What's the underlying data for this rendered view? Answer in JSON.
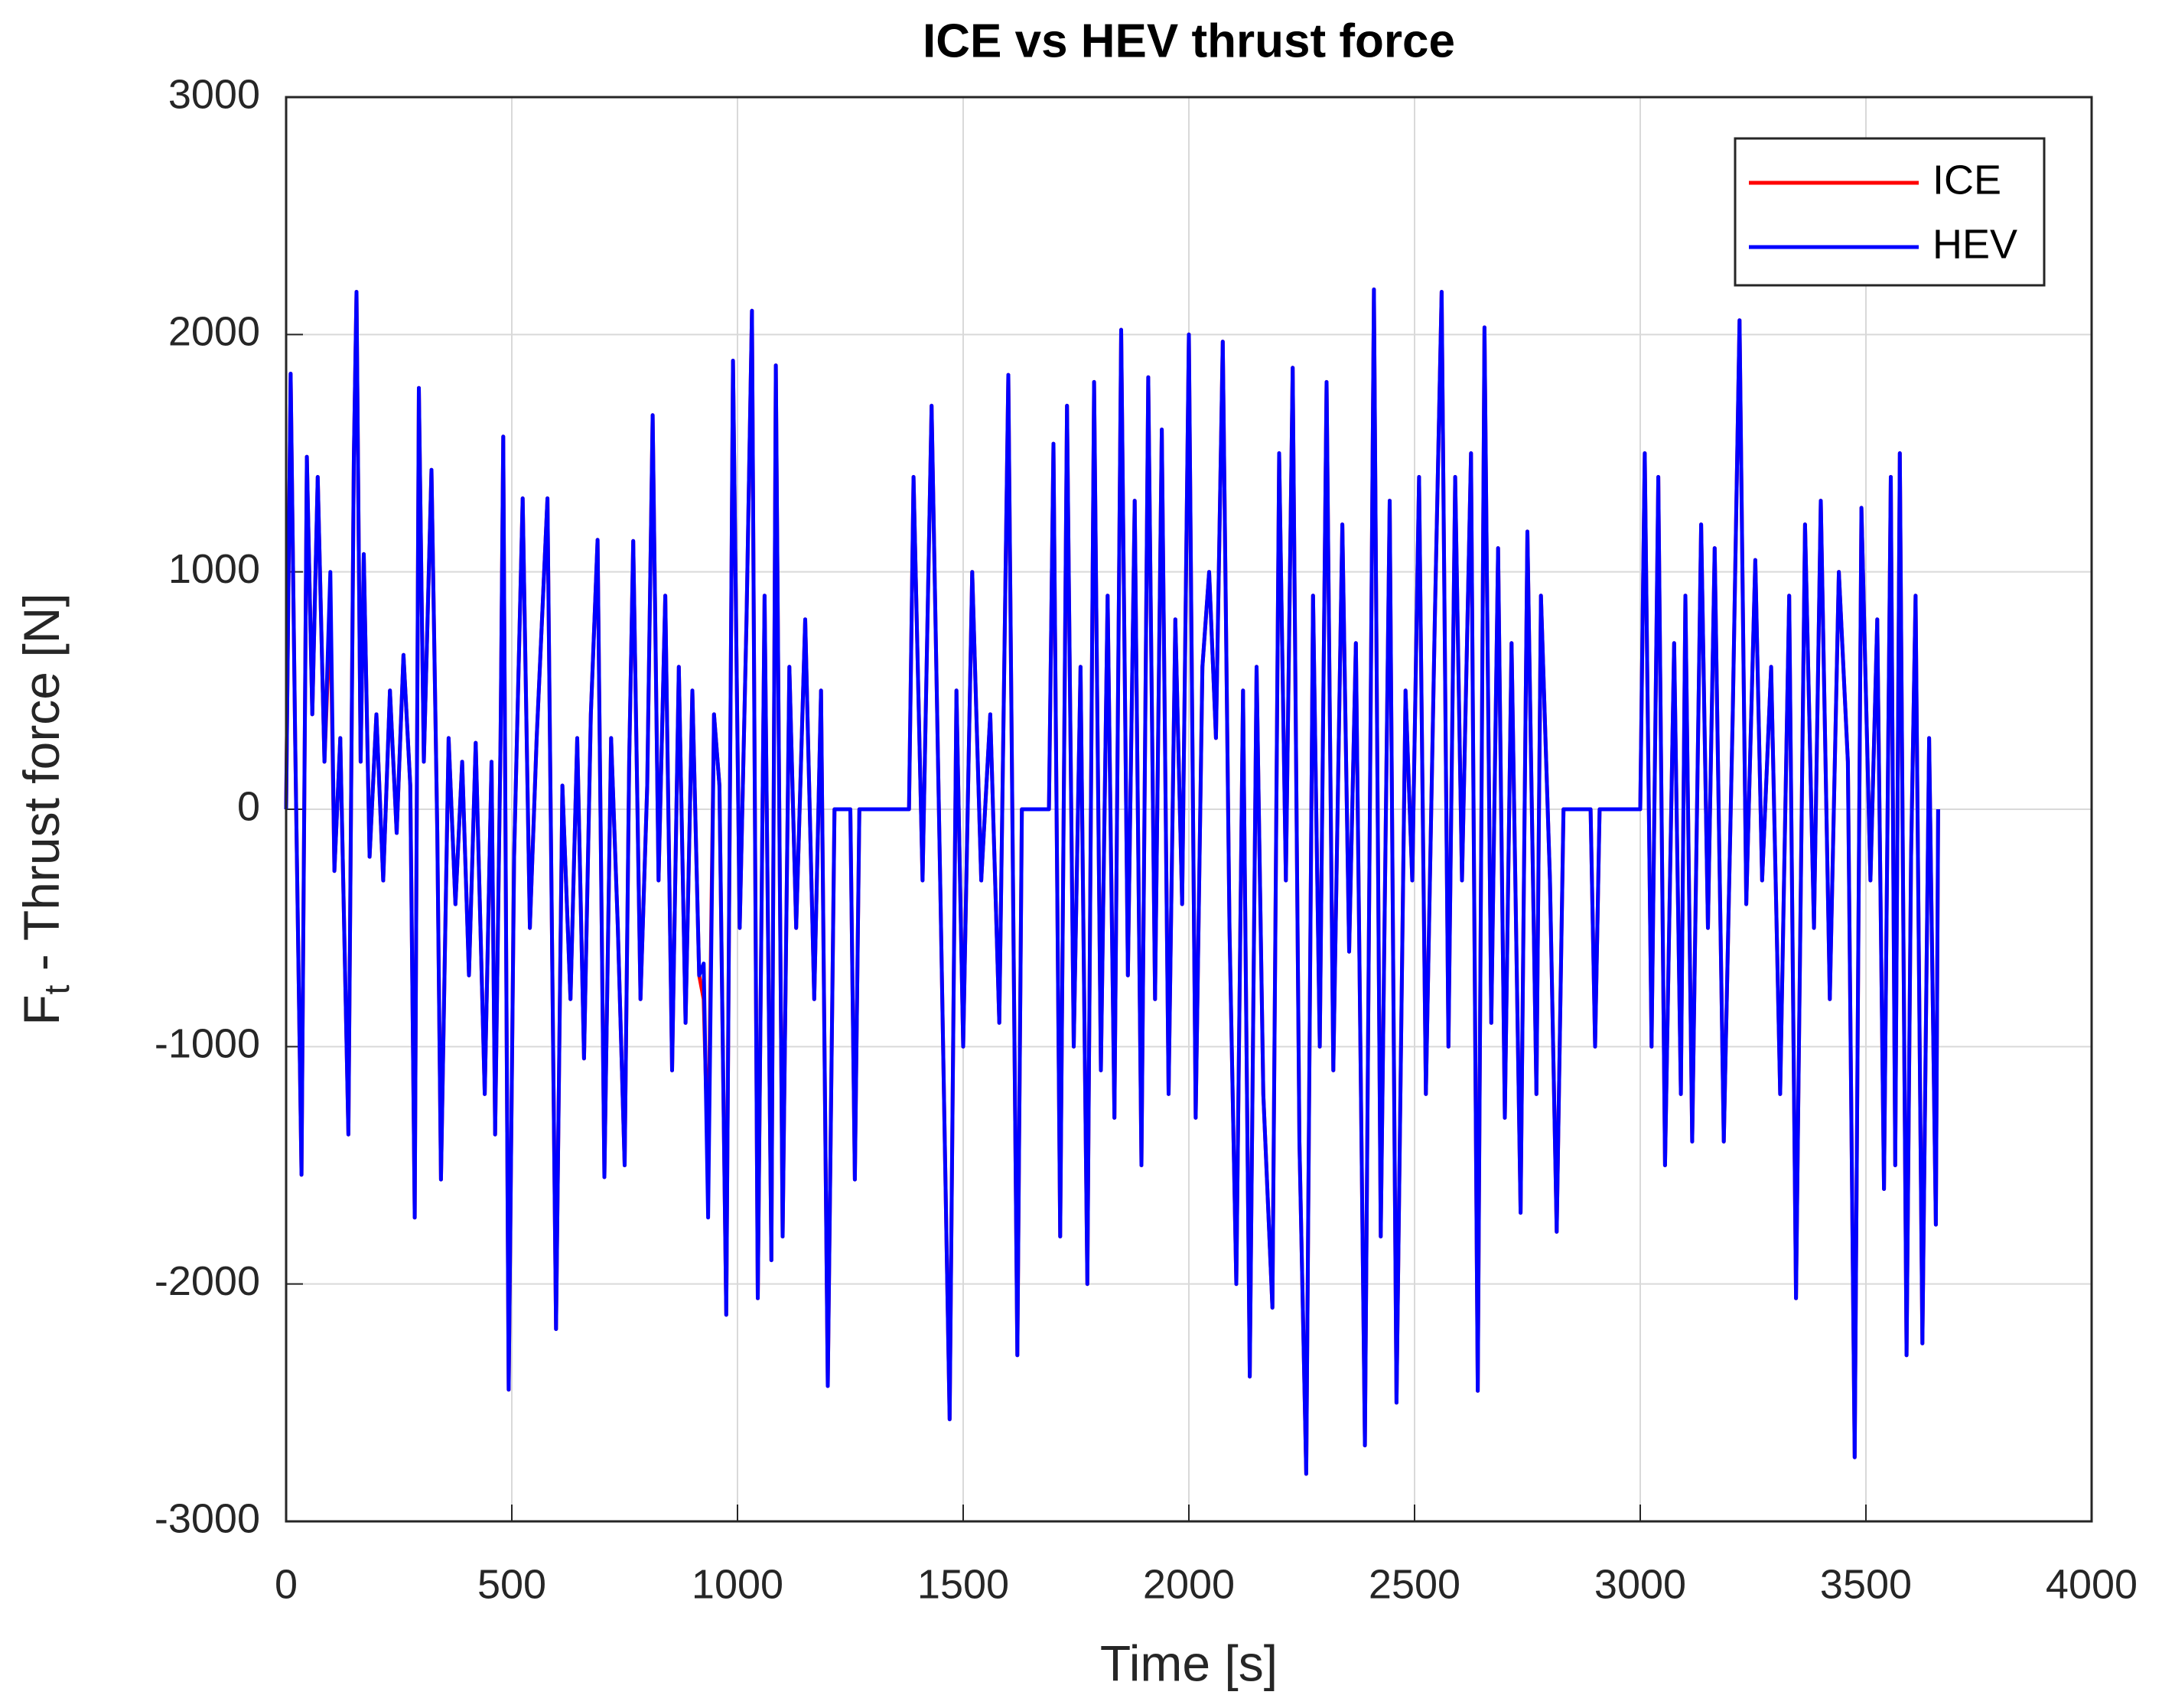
{
  "chart_data": {
    "type": "line",
    "title": "ICE vs HEV thrust force",
    "xlabel": "Time [s]",
    "ylabel": {
      "main": "F",
      "sub": "t",
      "rest": " - Thrust force [N]"
    },
    "xlim": [
      0,
      4000
    ],
    "xticks": [
      0,
      500,
      1000,
      1500,
      2000,
      2500,
      3000,
      3500,
      4000
    ],
    "ylim": [
      -3000,
      3000
    ],
    "yticks": [
      -3000,
      -2000,
      -1000,
      0,
      1000,
      2000,
      3000
    ],
    "grid": true,
    "legend": "top-right",
    "x": [
      0,
      10,
      20,
      34,
      46,
      58,
      70,
      85,
      98,
      107,
      120,
      138,
      150,
      156,
      165,
      172,
      185,
      200,
      215,
      230,
      245,
      260,
      275,
      285,
      294,
      305,
      322,
      335,
      343,
      360,
      375,
      390,
      405,
      420,
      440,
      455,
      463,
      475,
      481,
      493,
      505,
      524,
      540,
      555,
      579,
      598,
      612,
      630,
      645,
      660,
      675,
      690,
      705,
      720,
      735,
      750,
      760,
      769,
      785,
      800,
      812,
      825,
      840,
      855,
      870,
      885,
      900,
      915,
      925,
      935,
      948,
      960,
      975,
      990,
      1005,
      1020,
      1032,
      1045,
      1060,
      1075,
      1085,
      1100,
      1115,
      1130,
      1150,
      1170,
      1185,
      1200,
      1215,
      1250,
      1260,
      1270,
      1380,
      1390,
      1410,
      1430,
      1450,
      1470,
      1485,
      1500,
      1520,
      1540,
      1560,
      1580,
      1600,
      1620,
      1630,
      1690,
      1700,
      1715,
      1730,
      1745,
      1760,
      1775,
      1790,
      1805,
      1820,
      1835,
      1850,
      1865,
      1880,
      1895,
      1910,
      1925,
      1940,
      1955,
      1970,
      1985,
      2000,
      2015,
      2030,
      2045,
      2060,
      2075,
      2090,
      2105,
      2120,
      2135,
      2150,
      2165,
      2185,
      2200,
      2215,
      2230,
      2245,
      2260,
      2275,
      2290,
      2305,
      2320,
      2340,
      2355,
      2370,
      2390,
      2410,
      2425,
      2445,
      2460,
      2480,
      2495,
      2510,
      2525,
      2545,
      2560,
      2575,
      2590,
      2605,
      2625,
      2640,
      2655,
      2670,
      2685,
      2700,
      2715,
      2735,
      2750,
      2770,
      2780,
      2800,
      2815,
      2830,
      2890,
      2900,
      2910,
      3000,
      3010,
      3025,
      3040,
      3055,
      3075,
      3090,
      3100,
      3115,
      3135,
      3150,
      3165,
      3185,
      3205,
      3220,
      3235,
      3255,
      3270,
      3290,
      3310,
      3330,
      3345,
      3365,
      3385,
      3400,
      3420,
      3440,
      3460,
      3475,
      3490,
      3510,
      3525,
      3540,
      3555,
      3565,
      3575,
      3590,
      3600,
      3610,
      3625,
      3640,
      3655,
      3660
    ],
    "series": [
      {
        "name": "ICE",
        "color": "#ff0000",
        "values": [
          0,
          1835,
          300,
          -1540,
          1485,
          400,
          1400,
          200,
          850,
          -260,
          300,
          -1370,
          1480,
          2180,
          200,
          1075,
          -200,
          400,
          -300,
          500,
          -100,
          650,
          100,
          -1720,
          1775,
          200,
          1430,
          -100,
          -1560,
          300,
          -400,
          200,
          -700,
          280,
          -1200,
          200,
          -1370,
          300,
          1570,
          -2445,
          -200,
          1310,
          -500,
          300,
          1310,
          -2190,
          100,
          -800,
          300,
          -1050,
          400,
          1135,
          -1550,
          300,
          -500,
          -1500,
          200,
          1130,
          -800,
          100,
          1660,
          -300,
          900,
          -1100,
          600,
          -900,
          500,
          -700,
          -800,
          -1500,
          400,
          100,
          -2130,
          1890,
          -500,
          800,
          2100,
          -2060,
          900,
          -1900,
          1870,
          -1800,
          600,
          -500,
          800,
          -800,
          500,
          -2430,
          0,
          0,
          -1560,
          0,
          0,
          1400,
          -300,
          1700,
          -400,
          -2570,
          500,
          -1000,
          1000,
          -300,
          400,
          -900,
          1830,
          -2300,
          0,
          0,
          1540,
          -1800,
          1700,
          -1000,
          600,
          -2000,
          1800,
          -1100,
          900,
          -1300,
          2020,
          -700,
          1300,
          -1500,
          1820,
          -800,
          1600,
          -1200,
          800,
          -400,
          2000,
          -1300,
          600,
          1000,
          300,
          1970,
          -500,
          -2000,
          500,
          -2390,
          600,
          -1200,
          -2100,
          1500,
          -300,
          1860,
          -1400,
          -2800,
          900,
          -1000,
          1800,
          -1100,
          1200,
          -600,
          700,
          -2680,
          2190,
          -1800,
          1300,
          -2500,
          500,
          -300,
          1400,
          -1200,
          800,
          2180,
          -1000,
          1400,
          -300,
          1500,
          -2450,
          2030,
          -900,
          1100,
          -1300,
          700,
          -1700,
          1170,
          -1200,
          900,
          -300,
          -1780,
          0,
          0,
          -1000,
          0,
          0,
          1500,
          -1000,
          1400,
          -1500,
          700,
          -1200,
          900,
          -1400,
          1200,
          -500,
          1100,
          -1400,
          400,
          2060,
          -400,
          1050,
          -300,
          600,
          -1200,
          900,
          -2060,
          1200,
          -500,
          1300,
          -800,
          1000,
          200,
          -2730,
          1270,
          -300,
          800,
          -1600,
          1400,
          -1500,
          1500,
          -2300,
          -200,
          900,
          -2250,
          300,
          -1750,
          0
        ]
      },
      {
        "name": "HEV",
        "color": "#0000ff",
        "values": [
          0,
          1835,
          300,
          -1540,
          1485,
          400,
          1400,
          200,
          1000,
          -260,
          300,
          -1370,
          1480,
          2180,
          200,
          1075,
          -200,
          400,
          -300,
          500,
          -100,
          650,
          100,
          -1720,
          1775,
          200,
          1430,
          -100,
          -1560,
          300,
          -400,
          200,
          -700,
          280,
          -1200,
          200,
          -1370,
          300,
          1570,
          -2445,
          -200,
          1310,
          -500,
          300,
          1310,
          -2190,
          100,
          -800,
          300,
          -1050,
          400,
          1135,
          -1550,
          300,
          -500,
          -1500,
          200,
          1130,
          -800,
          100,
          1660,
          -300,
          900,
          -1100,
          600,
          -900,
          500,
          -700,
          -650,
          -1720,
          400,
          100,
          -2130,
          1890,
          -500,
          800,
          2100,
          -2060,
          900,
          -1900,
          1870,
          -1800,
          600,
          -500,
          800,
          -800,
          500,
          -2430,
          0,
          0,
          -1560,
          0,
          0,
          1400,
          -300,
          1700,
          -400,
          -2570,
          500,
          -1000,
          1000,
          -300,
          400,
          -900,
          1830,
          -2300,
          0,
          0,
          1540,
          -1800,
          1700,
          -1000,
          600,
          -2000,
          1800,
          -1100,
          900,
          -1300,
          2020,
          -700,
          1300,
          -1500,
          1820,
          -800,
          1600,
          -1200,
          800,
          -400,
          2000,
          -1300,
          600,
          1000,
          300,
          1970,
          -500,
          -2000,
          500,
          -2390,
          600,
          -1200,
          -2100,
          1500,
          -300,
          1860,
          -1400,
          -2800,
          900,
          -1000,
          1800,
          -1100,
          1200,
          -600,
          700,
          -2680,
          2190,
          -1800,
          1300,
          -2500,
          500,
          -300,
          1400,
          -1200,
          800,
          2180,
          -1000,
          1400,
          -300,
          1500,
          -2450,
          2030,
          -900,
          1100,
          -1300,
          700,
          -1700,
          1170,
          -1200,
          900,
          -300,
          -1780,
          0,
          0,
          -1000,
          0,
          0,
          1500,
          -1000,
          1400,
          -1500,
          700,
          -1200,
          900,
          -1400,
          1200,
          -500,
          1100,
          -1400,
          400,
          2060,
          -400,
          1050,
          -300,
          600,
          -1200,
          900,
          -2060,
          1200,
          -500,
          1300,
          -800,
          1000,
          200,
          -2730,
          1270,
          -300,
          800,
          -1600,
          1400,
          -1500,
          1500,
          -2300,
          -200,
          900,
          -2250,
          300,
          -1750,
          0
        ]
      }
    ]
  }
}
